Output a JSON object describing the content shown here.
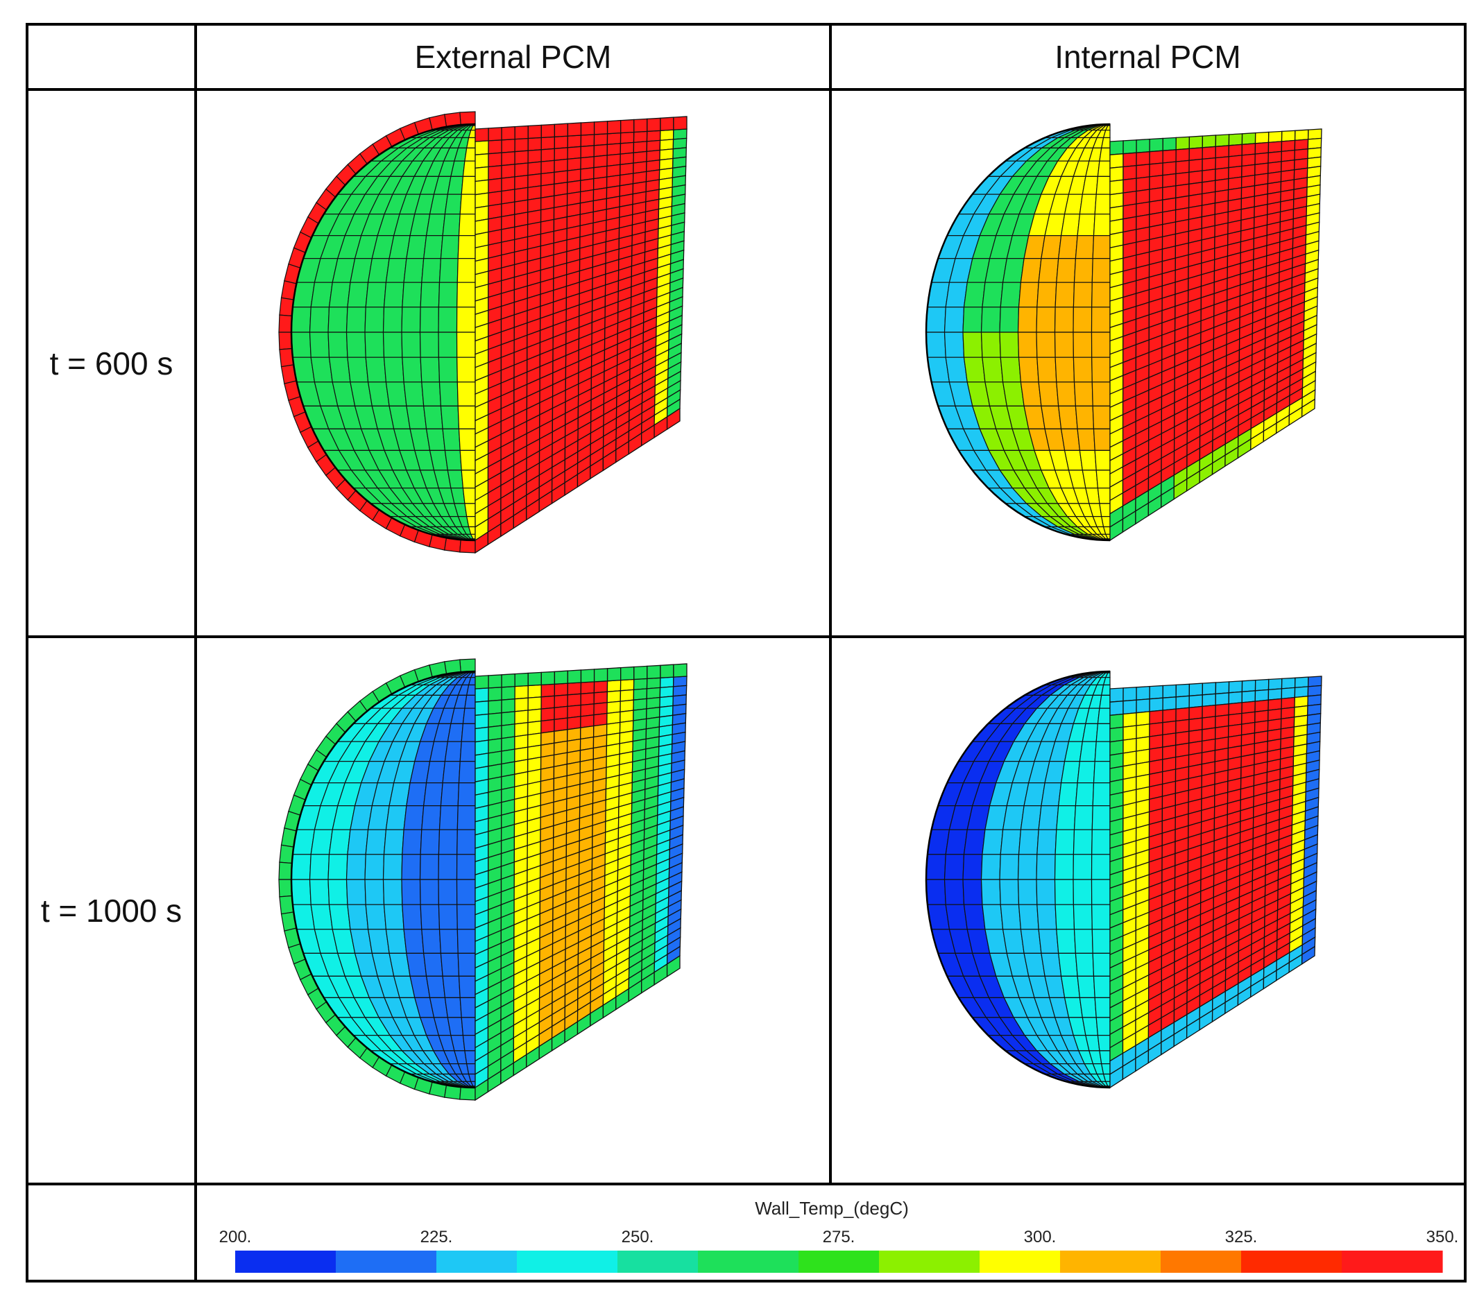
{
  "columns": {
    "corner": "",
    "external": "External PCM",
    "internal": "Internal PCM"
  },
  "rows": [
    {
      "label": "t = 600 s"
    },
    {
      "label": "t = 1000 s"
    }
  ],
  "panels": [
    {
      "name": "external-600",
      "column": "External PCM",
      "time": "t = 600 s"
    },
    {
      "name": "internal-600",
      "column": "Internal PCM",
      "time": "t = 600 s"
    },
    {
      "name": "external-1000",
      "column": "External PCM",
      "time": "t = 1000 s"
    },
    {
      "name": "internal-1000",
      "column": "Internal PCM",
      "time": "t = 1000 s"
    }
  ],
  "colorbar": {
    "title": "Wall_Temp_(degC)",
    "ticks": [
      "200.",
      "225.",
      "250.",
      "275.",
      "300.",
      "325.",
      "350."
    ],
    "min": 200,
    "max": 350,
    "palette": [
      "#0a2ef0",
      "#1e6ef5",
      "#1ec8f5",
      "#10f0e6",
      "#17e0a0",
      "#1ee05a",
      "#2ee21c",
      "#8cf000",
      "#ffff00",
      "#ffb400",
      "#ff7800",
      "#ff2a00",
      "#ff1a1a"
    ]
  }
}
